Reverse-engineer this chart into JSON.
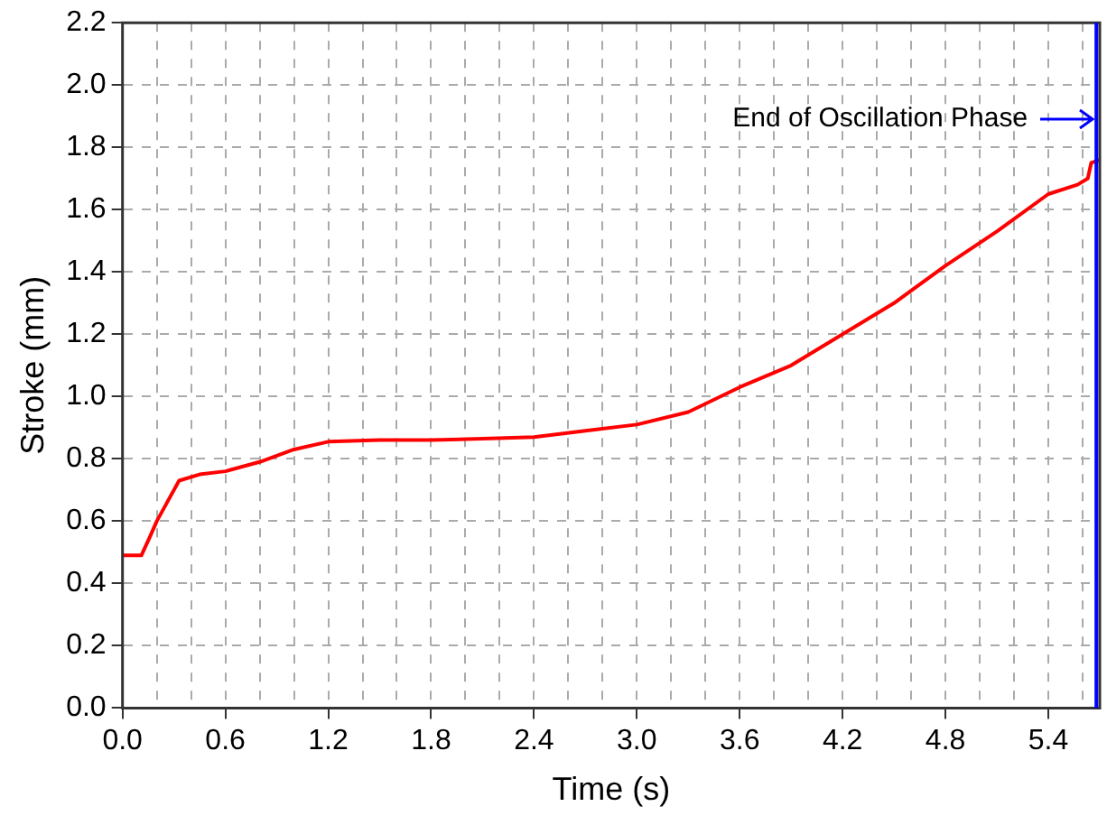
{
  "chart_data": {
    "type": "line",
    "xlabel": "Time (s)",
    "ylabel": "Stroke (mm)",
    "x": [
      0,
      0.11,
      0.16,
      0.2,
      0.26,
      0.33,
      0.45,
      0.6,
      0.8,
      1.0,
      1.2,
      1.5,
      1.8,
      2.1,
      2.4,
      2.7,
      3.0,
      3.3,
      3.6,
      3.9,
      4.2,
      4.5,
      4.8,
      5.1,
      5.4,
      5.57,
      5.63,
      5.65,
      5.7
    ],
    "series": [
      {
        "color": "#ff0000",
        "values": [
          0.49,
          0.49,
          0.55,
          0.6,
          0.66,
          0.73,
          0.75,
          0.76,
          0.79,
          0.83,
          0.855,
          0.86,
          0.86,
          0.865,
          0.87,
          0.89,
          0.91,
          0.95,
          1.03,
          1.1,
          1.2,
          1.3,
          1.42,
          1.53,
          1.65,
          1.68,
          1.7,
          1.75,
          1.76
        ]
      }
    ],
    "xlim": [
      0,
      5.7
    ],
    "xticks": [
      {
        "value": 0,
        "label": "0.0"
      },
      {
        "value": 0.2,
        "label": null
      },
      {
        "value": 0.4,
        "label": null
      },
      0.6,
      {
        "value": 0.8,
        "label": null
      },
      {
        "value": 1.0,
        "label": null
      },
      1.2,
      {
        "value": 1.4,
        "label": null
      },
      {
        "value": 1.6,
        "label": null
      },
      1.8,
      {
        "value": 2.0,
        "label": null
      },
      {
        "value": 2.2,
        "label": null
      },
      2.4,
      {
        "value": 2.6,
        "label": null
      },
      {
        "value": 2.8,
        "label": null
      },
      {
        "value": 3,
        "label": "3.0"
      },
      {
        "value": 3.2,
        "label": null
      },
      {
        "value": 3.4,
        "label": null
      },
      3.6,
      {
        "value": 3.8,
        "label": null
      },
      {
        "value": 4.0,
        "label": null
      },
      4.2,
      {
        "value": 4.4,
        "label": null
      },
      {
        "value": 4.6,
        "label": null
      },
      4.8,
      {
        "value": 5.0,
        "label": null
      },
      {
        "value": 5.2,
        "label": null
      },
      5.4,
      {
        "value": 5.6,
        "label": null
      }
    ],
    "ylim": [
      0,
      2.2
    ],
    "yticks": [
      {
        "value": 0,
        "label": "0.0"
      },
      0.2,
      0.4,
      0.6,
      0.8,
      {
        "value": 1,
        "label": "1.0"
      },
      1.2,
      1.4,
      1.6,
      1.8,
      {
        "value": 2,
        "label": "2.0"
      },
      2.2
    ],
    "grid": true,
    "legend": false,
    "marker": "none",
    "line_style": "solid",
    "ref_lines": [
      {
        "axis": "x",
        "value": 5.68,
        "color": "#0000ff"
      }
    ],
    "annotations": [
      {
        "text": "End of Oscillation Phase",
        "x": 5.68,
        "y": 1.89
      }
    ]
  }
}
